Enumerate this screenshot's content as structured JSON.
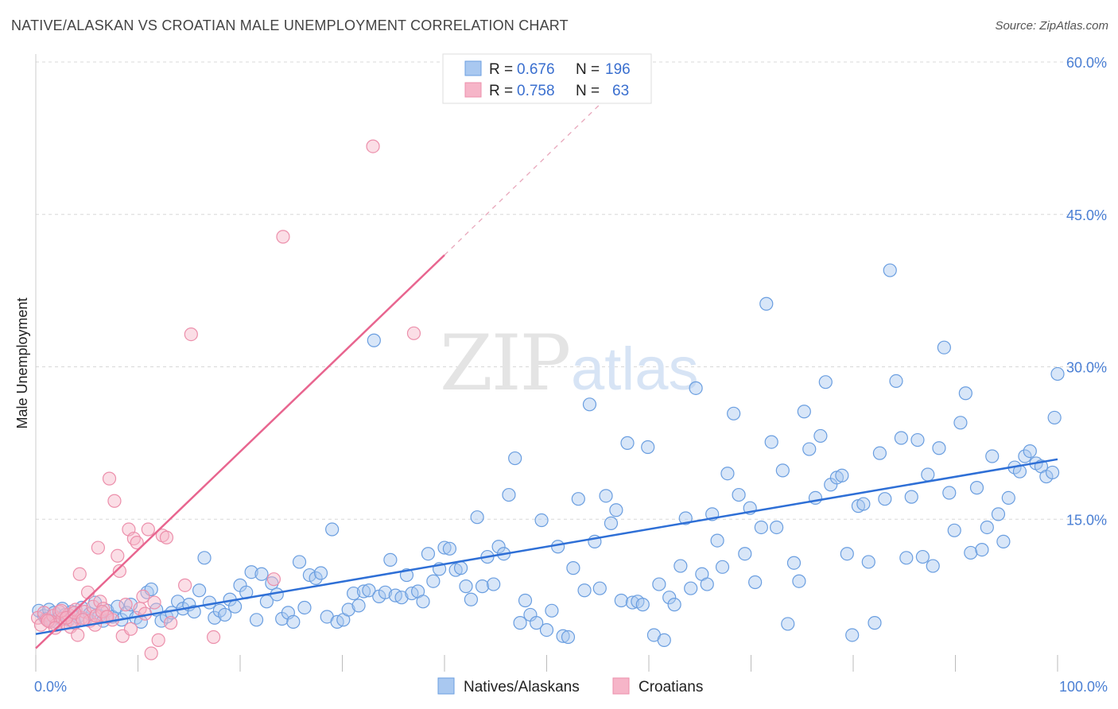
{
  "title": "NATIVE/ALASKAN VS CROATIAN MALE UNEMPLOYMENT CORRELATION CHART",
  "source": "Source: ZipAtlas.com",
  "watermark": {
    "zip": "ZIP",
    "atlas": "atlas"
  },
  "colors": {
    "blue_fill": "#a9c8f0",
    "blue_stroke": "#6a9ee0",
    "blue_line": "#2e6fd6",
    "pink_fill": "#f6b5c8",
    "pink_stroke": "#ec8fab",
    "pink_line": "#e8658f",
    "grid": "#d8d8d8",
    "axis_text": "#4a7fd4"
  },
  "legend_top": {
    "r_label": "R =",
    "n_label": "N =",
    "rows": [
      {
        "series": "Natives/Alaskans",
        "r": "0.676",
        "n": "196"
      },
      {
        "series": "Croatians",
        "r": "0.758",
        "n": "63"
      }
    ]
  },
  "legend_bottom": [
    "Natives/Alaskans",
    "Croatians"
  ],
  "chart_data": {
    "type": "scatter",
    "title": "NATIVE/ALASKAN VS CROATIAN MALE UNEMPLOYMENT CORRELATION CHART",
    "xlabel": "",
    "ylabel": "Male Unemployment",
    "xlim": [
      0,
      100
    ],
    "ylim": [
      0,
      63
    ],
    "x_tick_labels": [
      "0.0%",
      "100.0%"
    ],
    "y_ticks": [
      15,
      30,
      45,
      60
    ],
    "y_tick_labels": [
      "15.0%",
      "30.0%",
      "45.0%",
      "60.0%"
    ],
    "grid": true,
    "legend_placement": "top-center",
    "series": [
      {
        "name": "Natives/Alaskans",
        "r": 0.676,
        "n": 196,
        "trend": {
          "x0": 0,
          "y0": 3.7,
          "x1": 100,
          "y1": 20.9
        },
        "points": [
          [
            0.3,
            6.0
          ],
          [
            0.8,
            5.5
          ],
          [
            1.0,
            5.2
          ],
          [
            1.3,
            6.1
          ],
          [
            1.5,
            5.0
          ],
          [
            1.8,
            5.8
          ],
          [
            2.0,
            4.9
          ],
          [
            2.3,
            5.3
          ],
          [
            2.6,
            6.2
          ],
          [
            2.9,
            5.6
          ],
          [
            3.2,
            5.1
          ],
          [
            3.5,
            5.9
          ],
          [
            3.8,
            4.8
          ],
          [
            4.1,
            5.4
          ],
          [
            4.5,
            6.3
          ],
          [
            4.9,
            5.2
          ],
          [
            5.3,
            5.7
          ],
          [
            5.8,
            6.8
          ],
          [
            6.2,
            5.5
          ],
          [
            6.6,
            5.0
          ],
          [
            7.0,
            6.0
          ],
          [
            7.5,
            5.4
          ],
          [
            8.0,
            6.4
          ],
          [
            8.4,
            5.1
          ],
          [
            8.9,
            5.8
          ],
          [
            9.3,
            6.6
          ],
          [
            9.8,
            5.3
          ],
          [
            10.3,
            4.9
          ],
          [
            10.9,
            7.8
          ],
          [
            11.3,
            8.1
          ],
          [
            11.8,
            6.1
          ],
          [
            12.3,
            5.0
          ],
          [
            12.8,
            5.4
          ],
          [
            13.3,
            5.8
          ],
          [
            13.9,
            6.9
          ],
          [
            14.4,
            6.2
          ],
          [
            15.0,
            6.6
          ],
          [
            15.5,
            5.9
          ],
          [
            16.0,
            8.0
          ],
          [
            16.5,
            11.2
          ],
          [
            17.0,
            6.8
          ],
          [
            17.5,
            5.3
          ],
          [
            18.0,
            6.0
          ],
          [
            18.5,
            5.6
          ],
          [
            19.0,
            7.1
          ],
          [
            19.5,
            6.4
          ],
          [
            20.0,
            8.5
          ],
          [
            20.6,
            7.8
          ],
          [
            21.1,
            9.8
          ],
          [
            21.6,
            5.1
          ],
          [
            22.1,
            9.6
          ],
          [
            22.6,
            6.9
          ],
          [
            23.1,
            8.7
          ],
          [
            23.6,
            7.6
          ],
          [
            24.1,
            5.2
          ],
          [
            24.7,
            5.8
          ],
          [
            25.2,
            4.9
          ],
          [
            25.8,
            10.8
          ],
          [
            26.3,
            6.3
          ],
          [
            26.8,
            9.5
          ],
          [
            27.4,
            9.2
          ],
          [
            27.9,
            9.7
          ],
          [
            28.5,
            5.4
          ],
          [
            29.0,
            14.0
          ],
          [
            29.5,
            4.9
          ],
          [
            30.1,
            5.1
          ],
          [
            30.6,
            6.1
          ],
          [
            31.1,
            7.7
          ],
          [
            31.6,
            6.5
          ],
          [
            32.1,
            7.9
          ],
          [
            32.6,
            8.0
          ],
          [
            33.1,
            32.6
          ],
          [
            33.6,
            7.4
          ],
          [
            34.2,
            7.8
          ],
          [
            34.7,
            11.0
          ],
          [
            35.2,
            7.5
          ],
          [
            35.8,
            7.3
          ],
          [
            36.3,
            9.5
          ],
          [
            36.8,
            7.7
          ],
          [
            37.4,
            7.9
          ],
          [
            37.9,
            6.9
          ],
          [
            38.4,
            11.6
          ],
          [
            38.9,
            8.9
          ],
          [
            39.5,
            10.1
          ],
          [
            40.0,
            12.2
          ],
          [
            40.5,
            12.1
          ],
          [
            41.1,
            10.0
          ],
          [
            41.6,
            10.2
          ],
          [
            42.1,
            8.4
          ],
          [
            42.6,
            7.1
          ],
          [
            43.2,
            15.2
          ],
          [
            43.7,
            8.4
          ],
          [
            44.2,
            11.3
          ],
          [
            44.8,
            8.6
          ],
          [
            45.3,
            12.3
          ],
          [
            45.8,
            11.6
          ],
          [
            46.3,
            17.4
          ],
          [
            46.9,
            21.0
          ],
          [
            47.4,
            4.8
          ],
          [
            47.9,
            7.0
          ],
          [
            48.4,
            5.6
          ],
          [
            49.0,
            4.8
          ],
          [
            49.5,
            14.9
          ],
          [
            50.0,
            4.1
          ],
          [
            50.5,
            6.0
          ],
          [
            51.1,
            12.3
          ],
          [
            51.6,
            3.5
          ],
          [
            52.1,
            3.4
          ],
          [
            52.6,
            10.2
          ],
          [
            53.1,
            17.0
          ],
          [
            53.7,
            8.0
          ],
          [
            54.2,
            26.3
          ],
          [
            54.7,
            12.8
          ],
          [
            55.2,
            8.2
          ],
          [
            55.8,
            17.3
          ],
          [
            56.3,
            14.6
          ],
          [
            56.8,
            15.9
          ],
          [
            57.3,
            7.0
          ],
          [
            57.9,
            22.5
          ],
          [
            58.4,
            6.8
          ],
          [
            58.9,
            6.9
          ],
          [
            59.4,
            6.6
          ],
          [
            59.9,
            22.1
          ],
          [
            60.5,
            3.6
          ],
          [
            61.0,
            8.6
          ],
          [
            61.5,
            3.1
          ],
          [
            62.0,
            7.3
          ],
          [
            62.5,
            6.6
          ],
          [
            63.1,
            10.4
          ],
          [
            63.6,
            15.1
          ],
          [
            64.1,
            8.2
          ],
          [
            64.6,
            27.9
          ],
          [
            65.2,
            9.6
          ],
          [
            65.7,
            8.6
          ],
          [
            66.2,
            15.5
          ],
          [
            66.7,
            12.9
          ],
          [
            67.2,
            10.3
          ],
          [
            67.7,
            19.5
          ],
          [
            68.3,
            25.4
          ],
          [
            68.8,
            17.4
          ],
          [
            69.4,
            11.6
          ],
          [
            69.9,
            16.1
          ],
          [
            70.4,
            8.8
          ],
          [
            71.0,
            14.2
          ],
          [
            71.5,
            36.2
          ],
          [
            72.0,
            22.6
          ],
          [
            72.5,
            14.2
          ],
          [
            73.1,
            19.8
          ],
          [
            73.6,
            4.7
          ],
          [
            74.2,
            10.7
          ],
          [
            74.7,
            8.9
          ],
          [
            75.2,
            25.6
          ],
          [
            75.7,
            21.9
          ],
          [
            76.3,
            17.1
          ],
          [
            76.8,
            23.2
          ],
          [
            77.3,
            28.5
          ],
          [
            77.8,
            18.4
          ],
          [
            78.4,
            19.1
          ],
          [
            78.9,
            19.3
          ],
          [
            79.4,
            11.6
          ],
          [
            79.9,
            3.6
          ],
          [
            80.5,
            16.3
          ],
          [
            81.0,
            16.5
          ],
          [
            81.5,
            10.8
          ],
          [
            82.1,
            4.8
          ],
          [
            82.6,
            21.5
          ],
          [
            83.1,
            17.0
          ],
          [
            83.6,
            39.5
          ],
          [
            84.2,
            28.6
          ],
          [
            84.7,
            23.0
          ],
          [
            85.2,
            11.2
          ],
          [
            85.7,
            17.2
          ],
          [
            86.3,
            22.8
          ],
          [
            86.8,
            11.3
          ],
          [
            87.3,
            19.4
          ],
          [
            87.8,
            10.4
          ],
          [
            88.4,
            22.0
          ],
          [
            88.9,
            31.9
          ],
          [
            89.4,
            17.6
          ],
          [
            89.9,
            13.9
          ],
          [
            90.5,
            24.5
          ],
          [
            91.0,
            27.4
          ],
          [
            91.5,
            11.7
          ],
          [
            92.1,
            18.1
          ],
          [
            92.6,
            12.0
          ],
          [
            93.1,
            14.2
          ],
          [
            93.6,
            21.2
          ],
          [
            94.2,
            15.5
          ],
          [
            94.7,
            12.8
          ],
          [
            95.2,
            17.1
          ],
          [
            95.8,
            20.1
          ],
          [
            96.3,
            19.7
          ],
          [
            96.8,
            21.2
          ],
          [
            97.3,
            21.7
          ],
          [
            97.9,
            20.5
          ],
          [
            98.4,
            20.2
          ],
          [
            98.9,
            19.2
          ],
          [
            99.5,
            19.6
          ],
          [
            99.7,
            25.0
          ],
          [
            100.0,
            29.3
          ]
        ]
      },
      {
        "name": "Croatians",
        "r": 0.758,
        "n": 63,
        "trend": {
          "x0": 0,
          "y0": 2.3,
          "x1": 40.0,
          "y1": 41.0
        },
        "trend_dashed_to": {
          "x": 56.0,
          "y": 56.6
        },
        "points": [
          [
            0.2,
            5.3
          ],
          [
            0.5,
            4.6
          ],
          [
            0.8,
            5.8
          ],
          [
            1.1,
            5.1
          ],
          [
            1.4,
            4.9
          ],
          [
            1.7,
            5.5
          ],
          [
            2.0,
            4.6
          ],
          [
            2.3,
            5.9
          ],
          [
            2.6,
            5.2
          ],
          [
            2.9,
            4.8
          ],
          [
            3.2,
            5.6
          ],
          [
            3.4,
            4.4
          ],
          [
            3.6,
            5.0
          ],
          [
            3.9,
            6.1
          ],
          [
            4.1,
            3.6
          ],
          [
            4.3,
            9.6
          ],
          [
            4.5,
            5.3
          ],
          [
            4.8,
            5.9
          ],
          [
            5.1,
            7.8
          ],
          [
            5.3,
            5.0
          ],
          [
            5.6,
            6.4
          ],
          [
            5.8,
            4.6
          ],
          [
            6.1,
            12.2
          ],
          [
            6.3,
            6.9
          ],
          [
            6.6,
            6.2
          ],
          [
            6.9,
            5.4
          ],
          [
            7.2,
            19.0
          ],
          [
            7.5,
            5.1
          ],
          [
            7.7,
            16.8
          ],
          [
            8.0,
            11.4
          ],
          [
            8.2,
            9.9
          ],
          [
            8.5,
            3.5
          ],
          [
            8.8,
            6.6
          ],
          [
            9.1,
            14.0
          ],
          [
            9.3,
            4.2
          ],
          [
            9.6,
            13.1
          ],
          [
            9.9,
            12.7
          ],
          [
            10.2,
            6.2
          ],
          [
            10.5,
            7.4
          ],
          [
            10.7,
            5.7
          ],
          [
            11.0,
            14.0
          ],
          [
            11.3,
            1.8
          ],
          [
            11.6,
            6.8
          ],
          [
            12.0,
            3.1
          ],
          [
            12.4,
            13.4
          ],
          [
            12.8,
            13.2
          ],
          [
            13.2,
            4.8
          ],
          [
            14.6,
            8.5
          ],
          [
            15.2,
            33.2
          ],
          [
            17.4,
            3.4
          ],
          [
            23.3,
            9.1
          ],
          [
            24.2,
            42.8
          ],
          [
            33.0,
            51.7
          ],
          [
            37.0,
            33.3
          ],
          [
            1.2,
            5.0
          ],
          [
            2.5,
            6.0
          ],
          [
            3.0,
            5.3
          ],
          [
            3.8,
            5.8
          ],
          [
            4.6,
            5.1
          ],
          [
            5.9,
            5.5
          ],
          [
            6.5,
            5.9
          ],
          [
            7.0,
            5.4
          ],
          [
            1.9,
            4.3
          ]
        ]
      }
    ]
  }
}
